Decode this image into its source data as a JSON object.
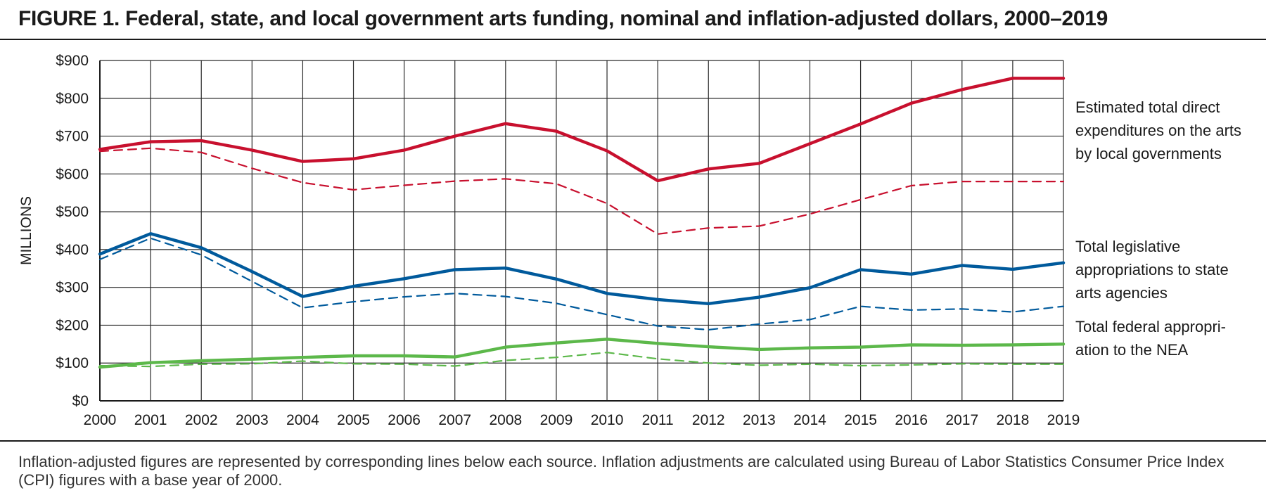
{
  "title": "FIGURE 1. Federal, state, and local government arts funding, nominal and inflation-adjusted dollars, 2000–2019",
  "note": "Inflation-adjusted figures are represented by corresponding lines below each source. Inflation adjustments are calculated using Bureau of Labor Statistics Consumer Price Index (CPI) figures with a base year of 2000.",
  "chart_data": {
    "type": "line",
    "title": "FIGURE 1. Federal, state, and local government arts funding, nominal and inflation-adjusted dollars, 2000–2019",
    "xlabel": "",
    "ylabel": "MILLIONS",
    "x": [
      "2000",
      "2001",
      "2002",
      "2003",
      "2004",
      "2005",
      "2006",
      "2007",
      "2008",
      "2009",
      "2010",
      "2011",
      "2012",
      "2013",
      "2014",
      "2015",
      "2016",
      "2017",
      "2018",
      "2019"
    ],
    "ylim": [
      0,
      900
    ],
    "yticks": [
      0,
      100,
      200,
      300,
      400,
      500,
      600,
      700,
      800,
      900
    ],
    "ytick_labels": [
      "$0",
      "$100",
      "$200",
      "$300",
      "$400",
      "$500",
      "$600",
      "$700",
      "$800",
      "$900"
    ],
    "grid": true,
    "series": [
      {
        "values": [
          665,
          685,
          688,
          663,
          633,
          640,
          663,
          700,
          733,
          713,
          661,
          582,
          613,
          628,
          680,
          732,
          787,
          823,
          853,
          853
        ],
        "color": "#c8102e",
        "style": "solid"
      },
      {
        "values": [
          660,
          668,
          657,
          615,
          577,
          558,
          570,
          581,
          587,
          574,
          522,
          441,
          457,
          462,
          494,
          532,
          569,
          580,
          580,
          580
        ],
        "color": "#c8102e",
        "style": "dashed"
      },
      {
        "values": [
          388,
          442,
          405,
          342,
          276,
          303,
          323,
          347,
          351,
          322,
          284,
          268,
          257,
          274,
          299,
          347,
          335,
          358,
          348,
          365
        ],
        "color": "#005a9c",
        "style": "solid"
      },
      {
        "values": [
          374,
          430,
          386,
          316,
          246,
          262,
          275,
          284,
          276,
          258,
          228,
          198,
          188,
          203,
          215,
          250,
          240,
          243,
          235,
          250
        ],
        "color": "#005a9c",
        "style": "dashed"
      },
      {
        "values": [
          89,
          101,
          106,
          110,
          115,
          119,
          119,
          116,
          142,
          153,
          163,
          152,
          143,
          136,
          140,
          142,
          148,
          147,
          148,
          150
        ],
        "color": "#5cb84a",
        "style": "solid"
      },
      {
        "values": [
          93,
          91,
          97,
          98,
          105,
          98,
          97,
          92,
          107,
          115,
          128,
          111,
          100,
          94,
          97,
          93,
          95,
          98,
          97,
          97
        ],
        "color": "#5cb84a",
        "style": "dashed"
      }
    ],
    "annotations": [
      {
        "lines": [
          "Estimated total direct",
          "expenditures on the arts",
          "by local governments"
        ],
        "series_index": 0
      },
      {
        "lines": [
          "Total legislative",
          "appropriations to state",
          "arts agencies"
        ],
        "series_index": 2
      },
      {
        "lines": [
          "Total federal appropri-",
          "ation to the NEA"
        ],
        "series_index": 4
      }
    ]
  }
}
